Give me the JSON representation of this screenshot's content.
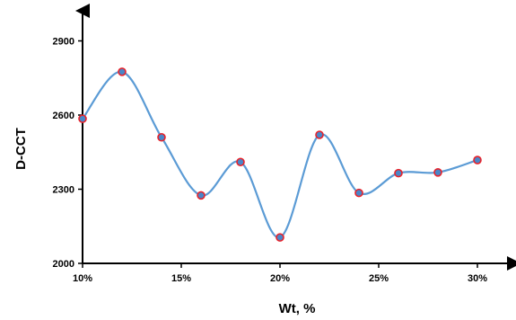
{
  "chart_data": {
    "type": "line",
    "title": "",
    "xlabel": "Wt, %",
    "ylabel": "D-CCT",
    "x": [
      10,
      12,
      14,
      16,
      18,
      20,
      22,
      24,
      26,
      28,
      30
    ],
    "x_tick_values": [
      10,
      15,
      20,
      25,
      30
    ],
    "x_tick_labels": [
      "10%",
      "15%",
      "20%",
      "25%",
      "30%"
    ],
    "y_tick_values": [
      2000,
      2300,
      2600,
      2900
    ],
    "y_tick_labels": [
      "2000",
      "2300",
      "2600",
      "2900"
    ],
    "xlim": [
      10,
      31.5
    ],
    "ylim": [
      2000,
      3000
    ],
    "grid": false,
    "smooth": true,
    "series": [
      {
        "values": [
          2585,
          2775,
          2510,
          2275,
          2410,
          2105,
          2520,
          2285,
          2365,
          2368,
          2418
        ],
        "line_color": "#5b9bd5",
        "marker_fill": "#4a86c8",
        "marker_edge": "#e8222a"
      }
    ]
  }
}
